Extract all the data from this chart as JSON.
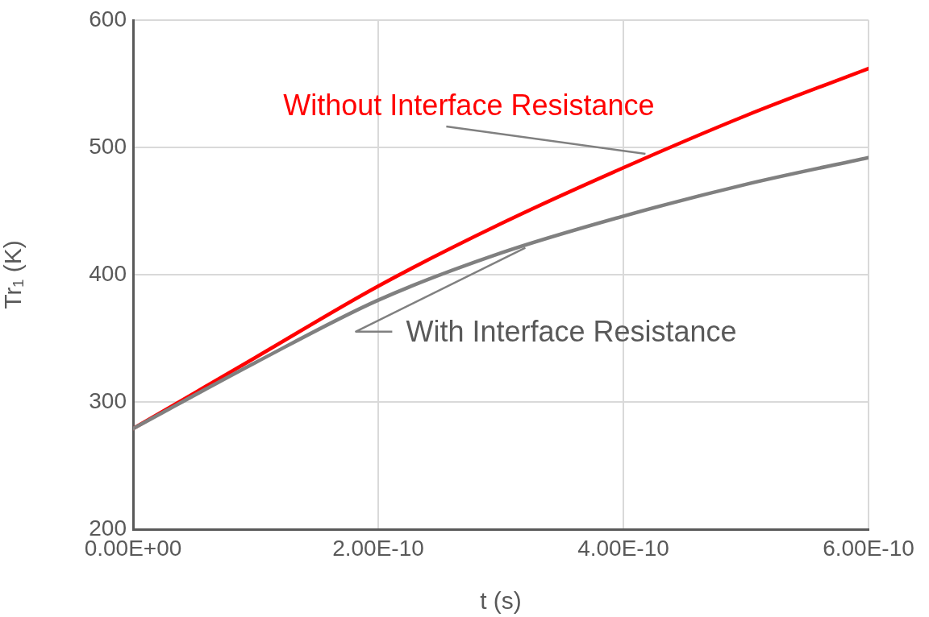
{
  "chart_data": {
    "type": "line",
    "xlabel": "t (s)",
    "ylabel": "Tr₁ (K)",
    "x": [
      0,
      1e-10,
      2e-10,
      3e-10,
      4e-10,
      5e-10,
      6e-10
    ],
    "series": [
      {
        "color": "#ff0000",
        "values": [
          279,
          335,
          391,
          440,
          484,
          525,
          562
        ]
      },
      {
        "color": "#808080",
        "values": [
          279,
          331,
          380,
          417,
          446,
          471,
          492
        ]
      }
    ],
    "xlim": [
      0,
      6e-10
    ],
    "xticks": [
      {
        "value": 0,
        "label": "0.00E+00"
      },
      {
        "value": 2e-10,
        "label": "2.00E-10"
      },
      {
        "value": 4e-10,
        "label": "4.00E-10"
      },
      {
        "value": 6e-10,
        "label": "6.00E-10"
      }
    ],
    "ylim": [
      200,
      600
    ],
    "yticks": [
      200,
      300,
      400,
      500,
      600
    ],
    "annotations": [
      {
        "text": "Without Interface Resistance",
        "x": 4.2e-10,
        "y": 493
      },
      {
        "text": "With Interface Resistance",
        "x": 3.2e-10,
        "y": 423
      }
    ],
    "grid": true,
    "legend": false,
    "marker": "none",
    "line_style": "solid"
  }
}
